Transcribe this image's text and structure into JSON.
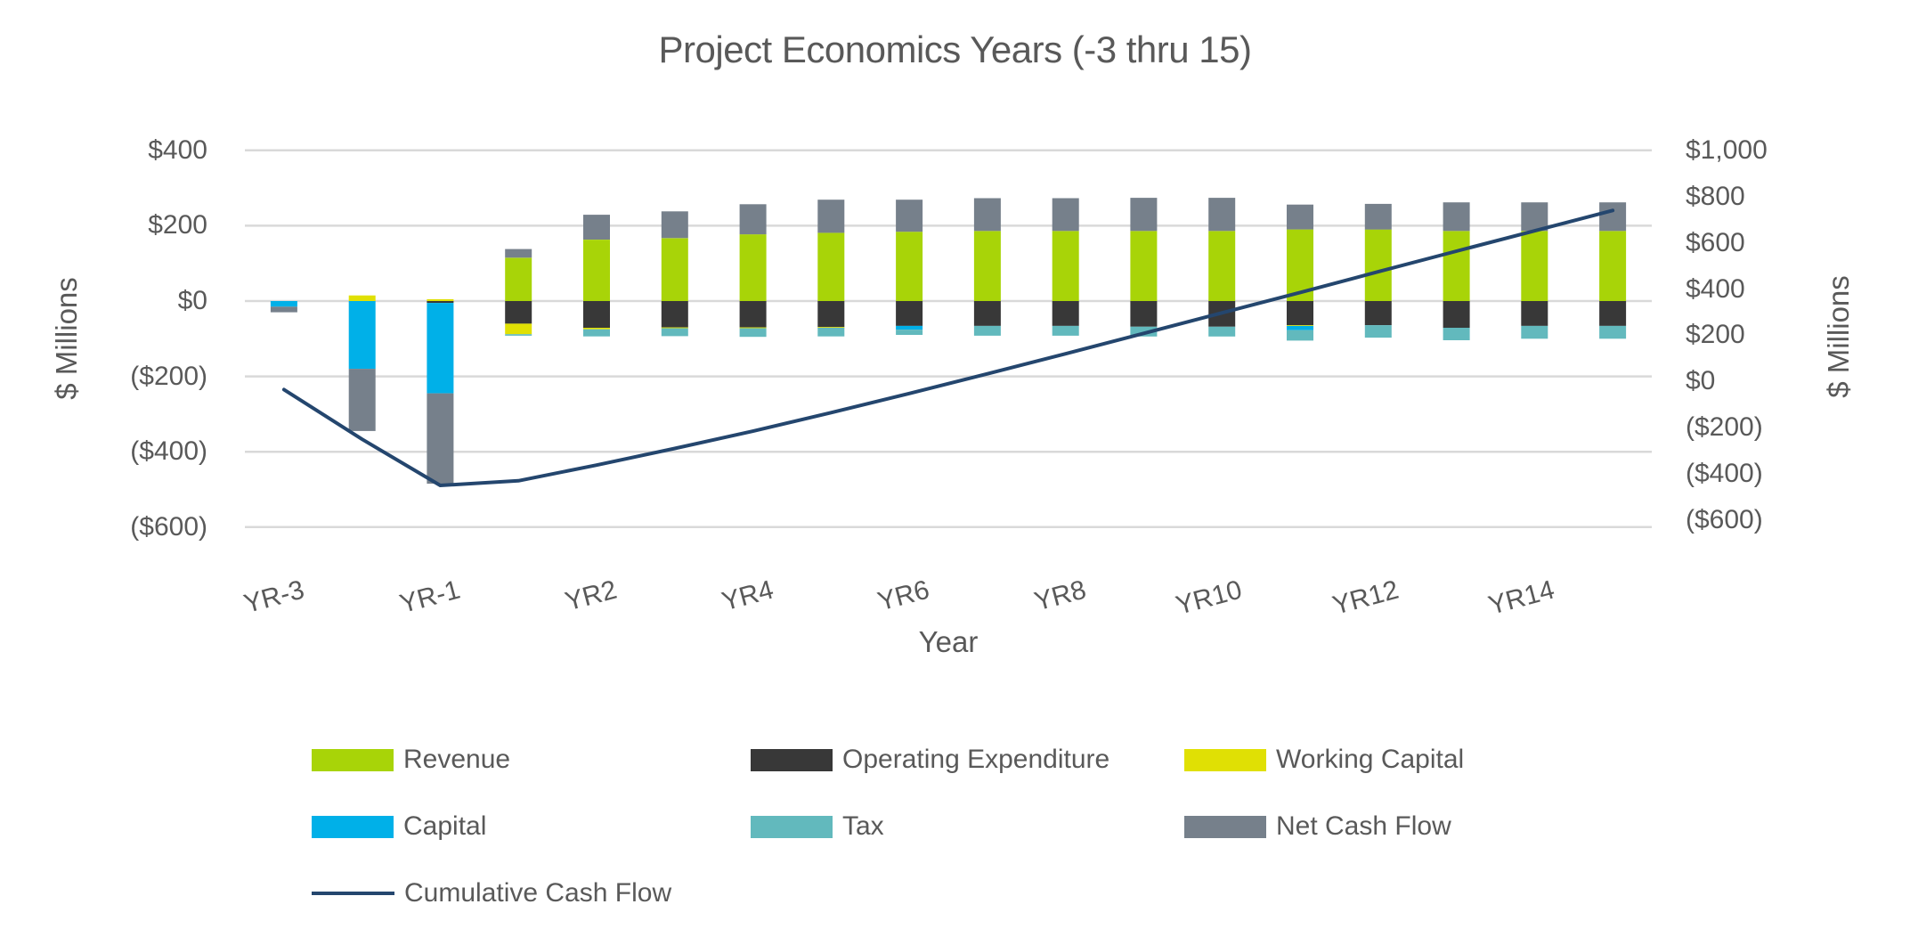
{
  "title": "Project Economics Years (-3 thru 15)",
  "axis_titles": {
    "left": "$ Millions",
    "right": "$ Millions",
    "x": "Year"
  },
  "left_axis": {
    "tick_labels": [
      "$400",
      "$200",
      "$0",
      "($200)",
      "($400)",
      "($600)"
    ],
    "tick_values": [
      400,
      200,
      0,
      -200,
      -400,
      -600
    ],
    "range": [
      -600,
      400
    ]
  },
  "right_axis": {
    "tick_labels": [
      "$1,000",
      "$800",
      "$600",
      "$400",
      "$200",
      "$0",
      "($200)",
      "($400)",
      "($600)"
    ],
    "tick_values": [
      1000,
      800,
      600,
      400,
      200,
      0,
      -200,
      -400,
      -600
    ],
    "range": [
      -600,
      1000
    ]
  },
  "chart_data": {
    "type": "bar",
    "subtype": "stacked-bars-with-line-on-secondary-axis",
    "title": "Project Economics Years (-3 thru 15)",
    "xlabel": "Year",
    "ylabel": "$ Millions",
    "ylabel_right": "$ Millions",
    "grid": true,
    "legend_position": "bottom",
    "categories": [
      "YR-3",
      "YR-2",
      "YR-1",
      "YR1",
      "YR2",
      "YR3",
      "YR4",
      "YR5",
      "YR6",
      "YR7",
      "YR8",
      "YR9",
      "YR10",
      "YR11",
      "YR12",
      "YR13",
      "YR14",
      "YR15"
    ],
    "x_tick_labels_shown": [
      "YR-3",
      "YR-1",
      "YR2",
      "YR4",
      "YR6",
      "YR8",
      "YR10",
      "YR12",
      "YR14"
    ],
    "x_tick_shown_indices": [
      0,
      2,
      4,
      6,
      8,
      10,
      12,
      14,
      16
    ],
    "series": [
      {
        "name": "Revenue",
        "color": "#A8D408",
        "axis": "left",
        "values": [
          0,
          0,
          0,
          115,
          163,
          167,
          177,
          181,
          184,
          186,
          186,
          186,
          186,
          190,
          190,
          186,
          186,
          186
        ]
      },
      {
        "name": "Operating Expenditure",
        "color": "#383838",
        "axis": "left",
        "values": [
          0,
          0,
          -5,
          -60,
          -71,
          -70,
          -70,
          -69,
          -66,
          -66,
          -66,
          -68,
          -68,
          -64,
          -64,
          -71,
          -66,
          -66
        ]
      },
      {
        "name": "Working Capital",
        "color": "#E0E004",
        "axis": "left",
        "values": [
          0,
          15,
          5,
          -28,
          -4,
          -2,
          -2,
          -2,
          0,
          0,
          0,
          0,
          0,
          -2,
          0,
          0,
          0,
          0
        ]
      },
      {
        "name": "Capital",
        "color": "#00B0E8",
        "axis": "left",
        "values": [
          -15,
          -180,
          -240,
          0,
          0,
          0,
          0,
          0,
          -10,
          0,
          0,
          0,
          0,
          -11,
          0,
          0,
          0,
          0
        ]
      },
      {
        "name": "Tax",
        "color": "#62B9BD",
        "axis": "left",
        "values": [
          0,
          0,
          0,
          -4,
          -19,
          -21,
          -23,
          -23,
          -14,
          -26,
          -26,
          -26,
          -26,
          -28,
          -33,
          -33,
          -34,
          -34
        ]
      },
      {
        "name": "Net Cash Flow",
        "color": "#76808B",
        "axis": "left",
        "values": [
          -15,
          -165,
          -240,
          23,
          66,
          71,
          80,
          88,
          85,
          87,
          87,
          88,
          88,
          66,
          68,
          76,
          76,
          76
        ]
      }
    ],
    "line_series": {
      "name": "Cumulative Cash Flow",
      "color": "#24466E",
      "axis": "right",
      "values": [
        -35,
        -250,
        -450,
        -430,
        -362,
        -290,
        -215,
        -135,
        -52,
        33,
        120,
        208,
        297,
        385,
        475,
        564,
        652,
        740
      ]
    }
  },
  "colors": {
    "grid": "#D9D9D9",
    "text": "#595959",
    "background": "#FFFFFF"
  }
}
